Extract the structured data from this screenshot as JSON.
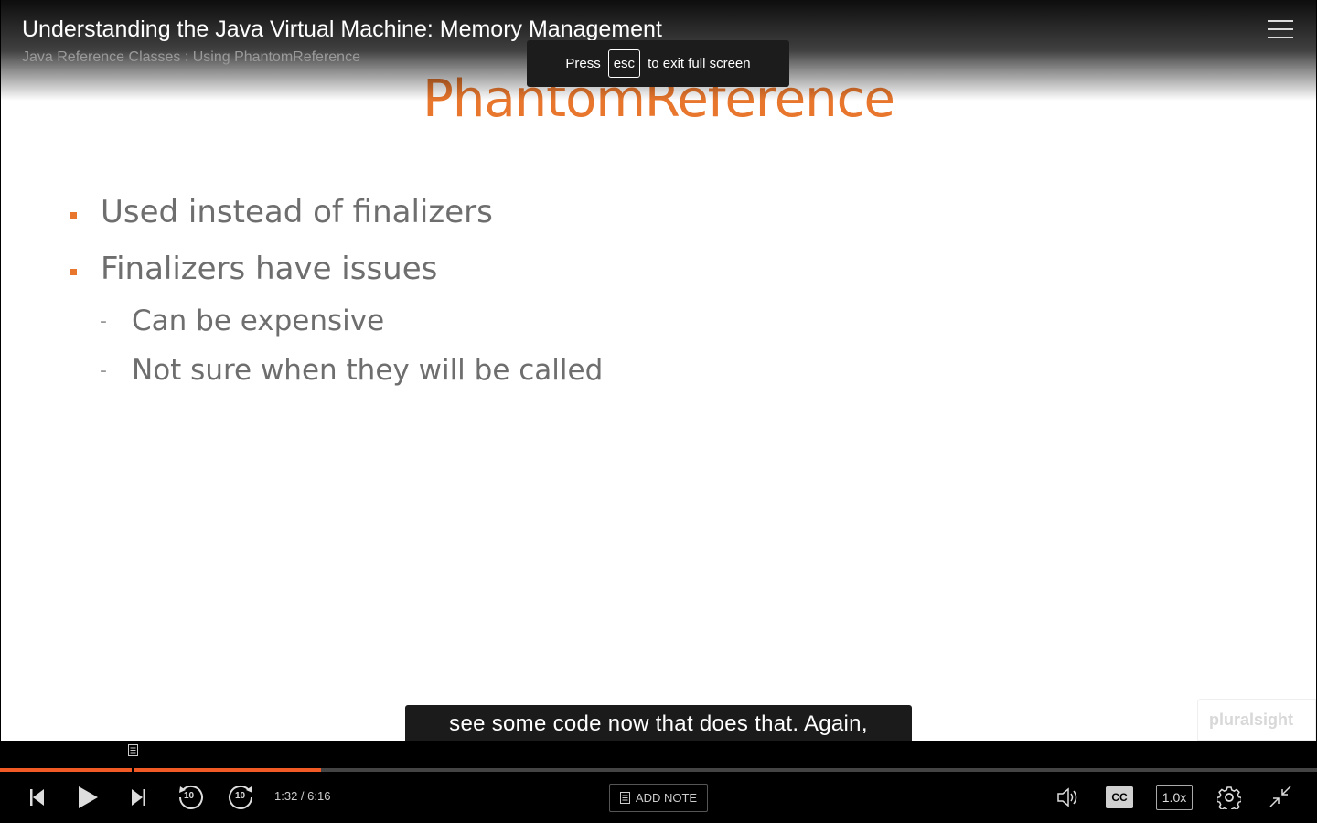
{
  "header": {
    "course_title": "Understanding the Java Virtual Machine: Memory Management",
    "clip_title": "Java Reference Classes : Using PhantomReference",
    "menu_icon": "hamburger-menu-icon"
  },
  "fullscreen_toast": {
    "press": "Press",
    "key": "esc",
    "message": "to exit full screen"
  },
  "slide": {
    "title": "PhantomReference",
    "bullets": [
      "Used instead of finalizers",
      "Finalizers have issues"
    ],
    "sub_bullets": [
      "Can be expensive",
      "Not sure when they will be called"
    ],
    "dash": "-",
    "watermark": "pluralsight",
    "accent_color": "#e8762c"
  },
  "caption": {
    "text": "see some code now that does that. Again,"
  },
  "player": {
    "progress_fraction": 0.244,
    "progress_color": "#f15a24",
    "time": "1:32 / 6:16",
    "add_note_label": "ADD NOTE",
    "cc_label": "CC",
    "speed_label": "1.0x",
    "rewind_label": "10",
    "forward_label": "10"
  }
}
